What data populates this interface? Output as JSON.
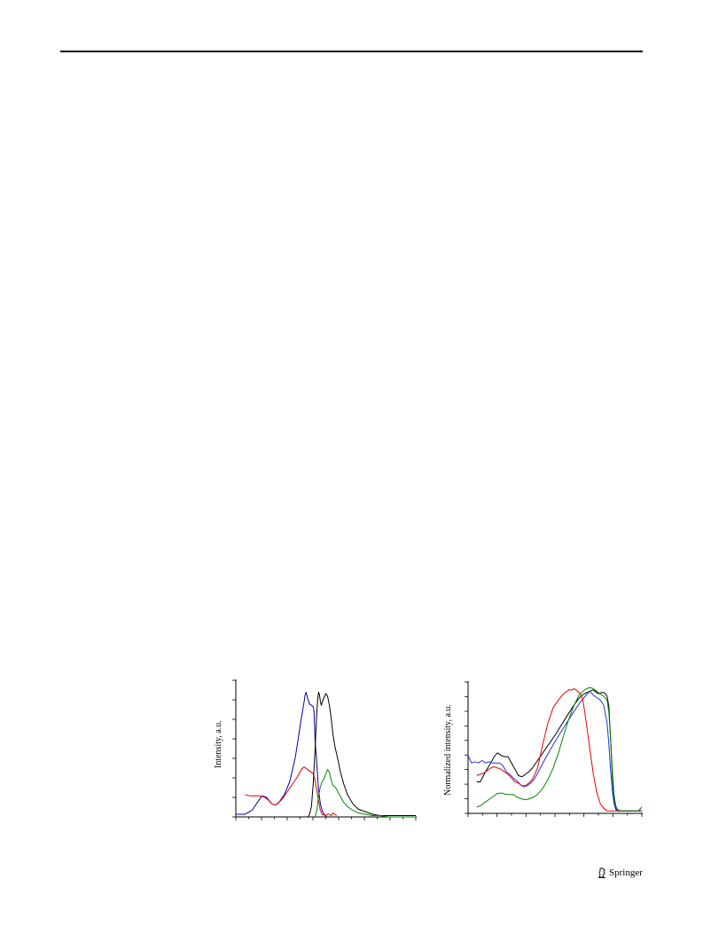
{
  "footer": {
    "publisher": "Springer",
    "logo_icon": "springer-horse-icon"
  },
  "chart_data": [
    {
      "type": "line",
      "title": "",
      "xlabel": "",
      "ylabel": "Intensity, a.u.",
      "xlim": [
        0,
        100
      ],
      "ylim": [
        0,
        1
      ],
      "grid": false,
      "series": [
        {
          "color": "#0000aa",
          "x": [
            0,
            5,
            9,
            12,
            14,
            15,
            17,
            20,
            22,
            24,
            27,
            30,
            33,
            35,
            36,
            37,
            38,
            38.5,
            39,
            40,
            41,
            42,
            43,
            43.5,
            44,
            45,
            46,
            47,
            48,
            49,
            50,
            50.5
          ],
          "y": [
            0.02,
            0.02,
            0.05,
            0.11,
            0.15,
            0.16,
            0.15,
            0.1,
            0.09,
            0.11,
            0.17,
            0.27,
            0.45,
            0.62,
            0.72,
            0.8,
            0.88,
            0.93,
            0.95,
            0.9,
            0.86,
            0.85,
            0.84,
            0.8,
            0.6,
            0.4,
            0.2,
            0.1,
            0.05,
            0.02,
            0.01,
            0.0
          ]
        },
        {
          "color": "#dd0000",
          "x": [
            5,
            8,
            11,
            14,
            16,
            18,
            20,
            22,
            24,
            26,
            28,
            31,
            34,
            36,
            37,
            38,
            39,
            40,
            41,
            42,
            43,
            44,
            45,
            46,
            47,
            48,
            50,
            51,
            52,
            53,
            54,
            55,
            56
          ],
          "y": [
            0.17,
            0.16,
            0.16,
            0.16,
            0.15,
            0.13,
            0.1,
            0.09,
            0.11,
            0.14,
            0.18,
            0.24,
            0.3,
            0.35,
            0.37,
            0.38,
            0.37,
            0.36,
            0.35,
            0.34,
            0.33,
            0.28,
            0.2,
            0.12,
            0.05,
            0.02,
            0.01,
            0.02,
            0.02,
            0.01,
            0.03,
            0.02,
            0.01
          ]
        },
        {
          "color": "#000000",
          "x": [
            40,
            41,
            42,
            43,
            44,
            45,
            45.5,
            46,
            46.5,
            47,
            47.5,
            48,
            49,
            50,
            51,
            52,
            53,
            54,
            55,
            56,
            57,
            58,
            60,
            62,
            65,
            68,
            72,
            76,
            80,
            85,
            90,
            95,
            100
          ],
          "y": [
            0.0,
            0.02,
            0.08,
            0.25,
            0.5,
            0.8,
            0.9,
            0.95,
            0.93,
            0.88,
            0.85,
            0.87,
            0.91,
            0.94,
            0.92,
            0.85,
            0.75,
            0.63,
            0.54,
            0.48,
            0.42,
            0.35,
            0.25,
            0.17,
            0.1,
            0.06,
            0.04,
            0.02,
            0.01,
            0.01,
            0.01,
            0.01,
            0.01
          ]
        },
        {
          "color": "#008800",
          "x": [
            44,
            45,
            46,
            47,
            48,
            49,
            50,
            51,
            52,
            53,
            54,
            55,
            56,
            58,
            60,
            62,
            65,
            68,
            72,
            76,
            80,
            85,
            90,
            95,
            100
          ],
          "y": [
            0.0,
            0.05,
            0.16,
            0.23,
            0.27,
            0.29,
            0.33,
            0.36,
            0.34,
            0.28,
            0.24,
            0.23,
            0.21,
            0.16,
            0.11,
            0.08,
            0.05,
            0.03,
            0.02,
            0.01,
            0.01,
            0.0,
            0.0,
            0.0,
            0.0
          ]
        }
      ]
    },
    {
      "type": "line",
      "title": "",
      "xlabel": "",
      "ylabel": "Normalized intensity, a.u.",
      "xlim": [
        0,
        100
      ],
      "ylim": [
        0,
        1
      ],
      "grid": false,
      "series": [
        {
          "color": "#000000",
          "x": [
            5,
            7,
            10,
            13,
            15,
            17,
            19,
            21,
            23,
            25,
            27,
            29,
            31,
            33,
            35,
            37,
            40,
            45,
            50,
            55,
            60,
            63,
            65,
            67,
            70,
            72,
            73,
            75,
            77,
            78,
            79,
            80,
            81,
            82,
            83,
            84,
            85,
            86,
            88,
            90,
            94,
            98,
            100
          ],
          "y": [
            0.25,
            0.25,
            0.33,
            0.4,
            0.45,
            0.48,
            0.46,
            0.45,
            0.45,
            0.4,
            0.35,
            0.3,
            0.29,
            0.31,
            0.33,
            0.36,
            0.42,
            0.52,
            0.62,
            0.73,
            0.84,
            0.9,
            0.93,
            0.95,
            0.97,
            0.98,
            0.97,
            0.95,
            0.96,
            0.96,
            0.95,
            0.93,
            0.85,
            0.6,
            0.3,
            0.1,
            0.04,
            0.02,
            0.02,
            0.02,
            0.02,
            0.02,
            0.02
          ]
        },
        {
          "color": "#2233dd",
          "x": [
            0,
            2,
            4,
            6,
            8,
            10,
            12,
            14,
            16,
            18,
            20,
            22,
            24,
            26,
            28,
            30,
            32,
            34,
            36,
            38,
            40,
            45,
            50,
            55,
            60,
            65,
            68,
            70,
            72,
            74,
            76,
            78,
            80,
            81,
            82,
            83,
            84,
            85,
            86,
            88,
            90,
            92,
            94,
            96,
            98,
            100
          ],
          "y": [
            0.46,
            0.4,
            0.41,
            0.4,
            0.42,
            0.4,
            0.41,
            0.4,
            0.4,
            0.4,
            0.38,
            0.33,
            0.31,
            0.28,
            0.26,
            0.23,
            0.21,
            0.22,
            0.24,
            0.27,
            0.32,
            0.45,
            0.57,
            0.68,
            0.79,
            0.89,
            0.94,
            0.97,
            0.94,
            0.92,
            0.9,
            0.86,
            0.72,
            0.55,
            0.35,
            0.18,
            0.08,
            0.03,
            0.02,
            0.02,
            0.02,
            0.02,
            0.02,
            0.02,
            0.02,
            0.05
          ]
        },
        {
          "color": "#ee0000",
          "x": [
            5,
            7,
            9,
            11,
            13,
            15,
            17,
            19,
            21,
            23,
            25,
            27,
            29,
            31,
            33,
            35,
            37,
            40,
            43,
            46,
            49,
            52,
            55,
            58,
            60,
            61,
            62,
            63,
            64,
            65,
            66,
            67,
            68,
            70,
            72,
            74,
            76,
            78,
            80,
            82,
            85,
            88,
            92,
            96,
            100
          ],
          "y": [
            0.3,
            0.31,
            0.32,
            0.34,
            0.36,
            0.37,
            0.36,
            0.35,
            0.33,
            0.31,
            0.28,
            0.25,
            0.24,
            0.22,
            0.22,
            0.24,
            0.27,
            0.36,
            0.55,
            0.72,
            0.84,
            0.9,
            0.95,
            0.98,
            0.98,
            0.99,
            0.98,
            0.97,
            0.96,
            0.94,
            0.9,
            0.82,
            0.72,
            0.52,
            0.32,
            0.17,
            0.08,
            0.04,
            0.02,
            0.02,
            0.02,
            0.02,
            0.02,
            0.02,
            0.02
          ]
        },
        {
          "color": "#008800",
          "x": [
            5,
            7,
            10,
            13,
            15,
            17,
            19,
            20,
            22,
            24,
            26,
            28,
            30,
            32,
            34,
            36,
            38,
            40,
            43,
            46,
            49,
            52,
            55,
            58,
            61,
            64,
            67,
            70,
            72,
            74,
            76,
            78,
            80,
            81,
            82,
            83,
            84,
            85,
            86,
            88,
            90,
            94,
            98,
            100
          ],
          "y": [
            0.05,
            0.06,
            0.09,
            0.12,
            0.14,
            0.16,
            0.16,
            0.16,
            0.15,
            0.15,
            0.15,
            0.13,
            0.12,
            0.11,
            0.11,
            0.12,
            0.13,
            0.15,
            0.2,
            0.27,
            0.36,
            0.48,
            0.62,
            0.75,
            0.86,
            0.94,
            0.98,
            1.0,
            0.99,
            0.97,
            0.95,
            0.93,
            0.9,
            0.8,
            0.6,
            0.35,
            0.15,
            0.06,
            0.03,
            0.02,
            0.02,
            0.02,
            0.02,
            0.02
          ]
        }
      ]
    }
  ]
}
